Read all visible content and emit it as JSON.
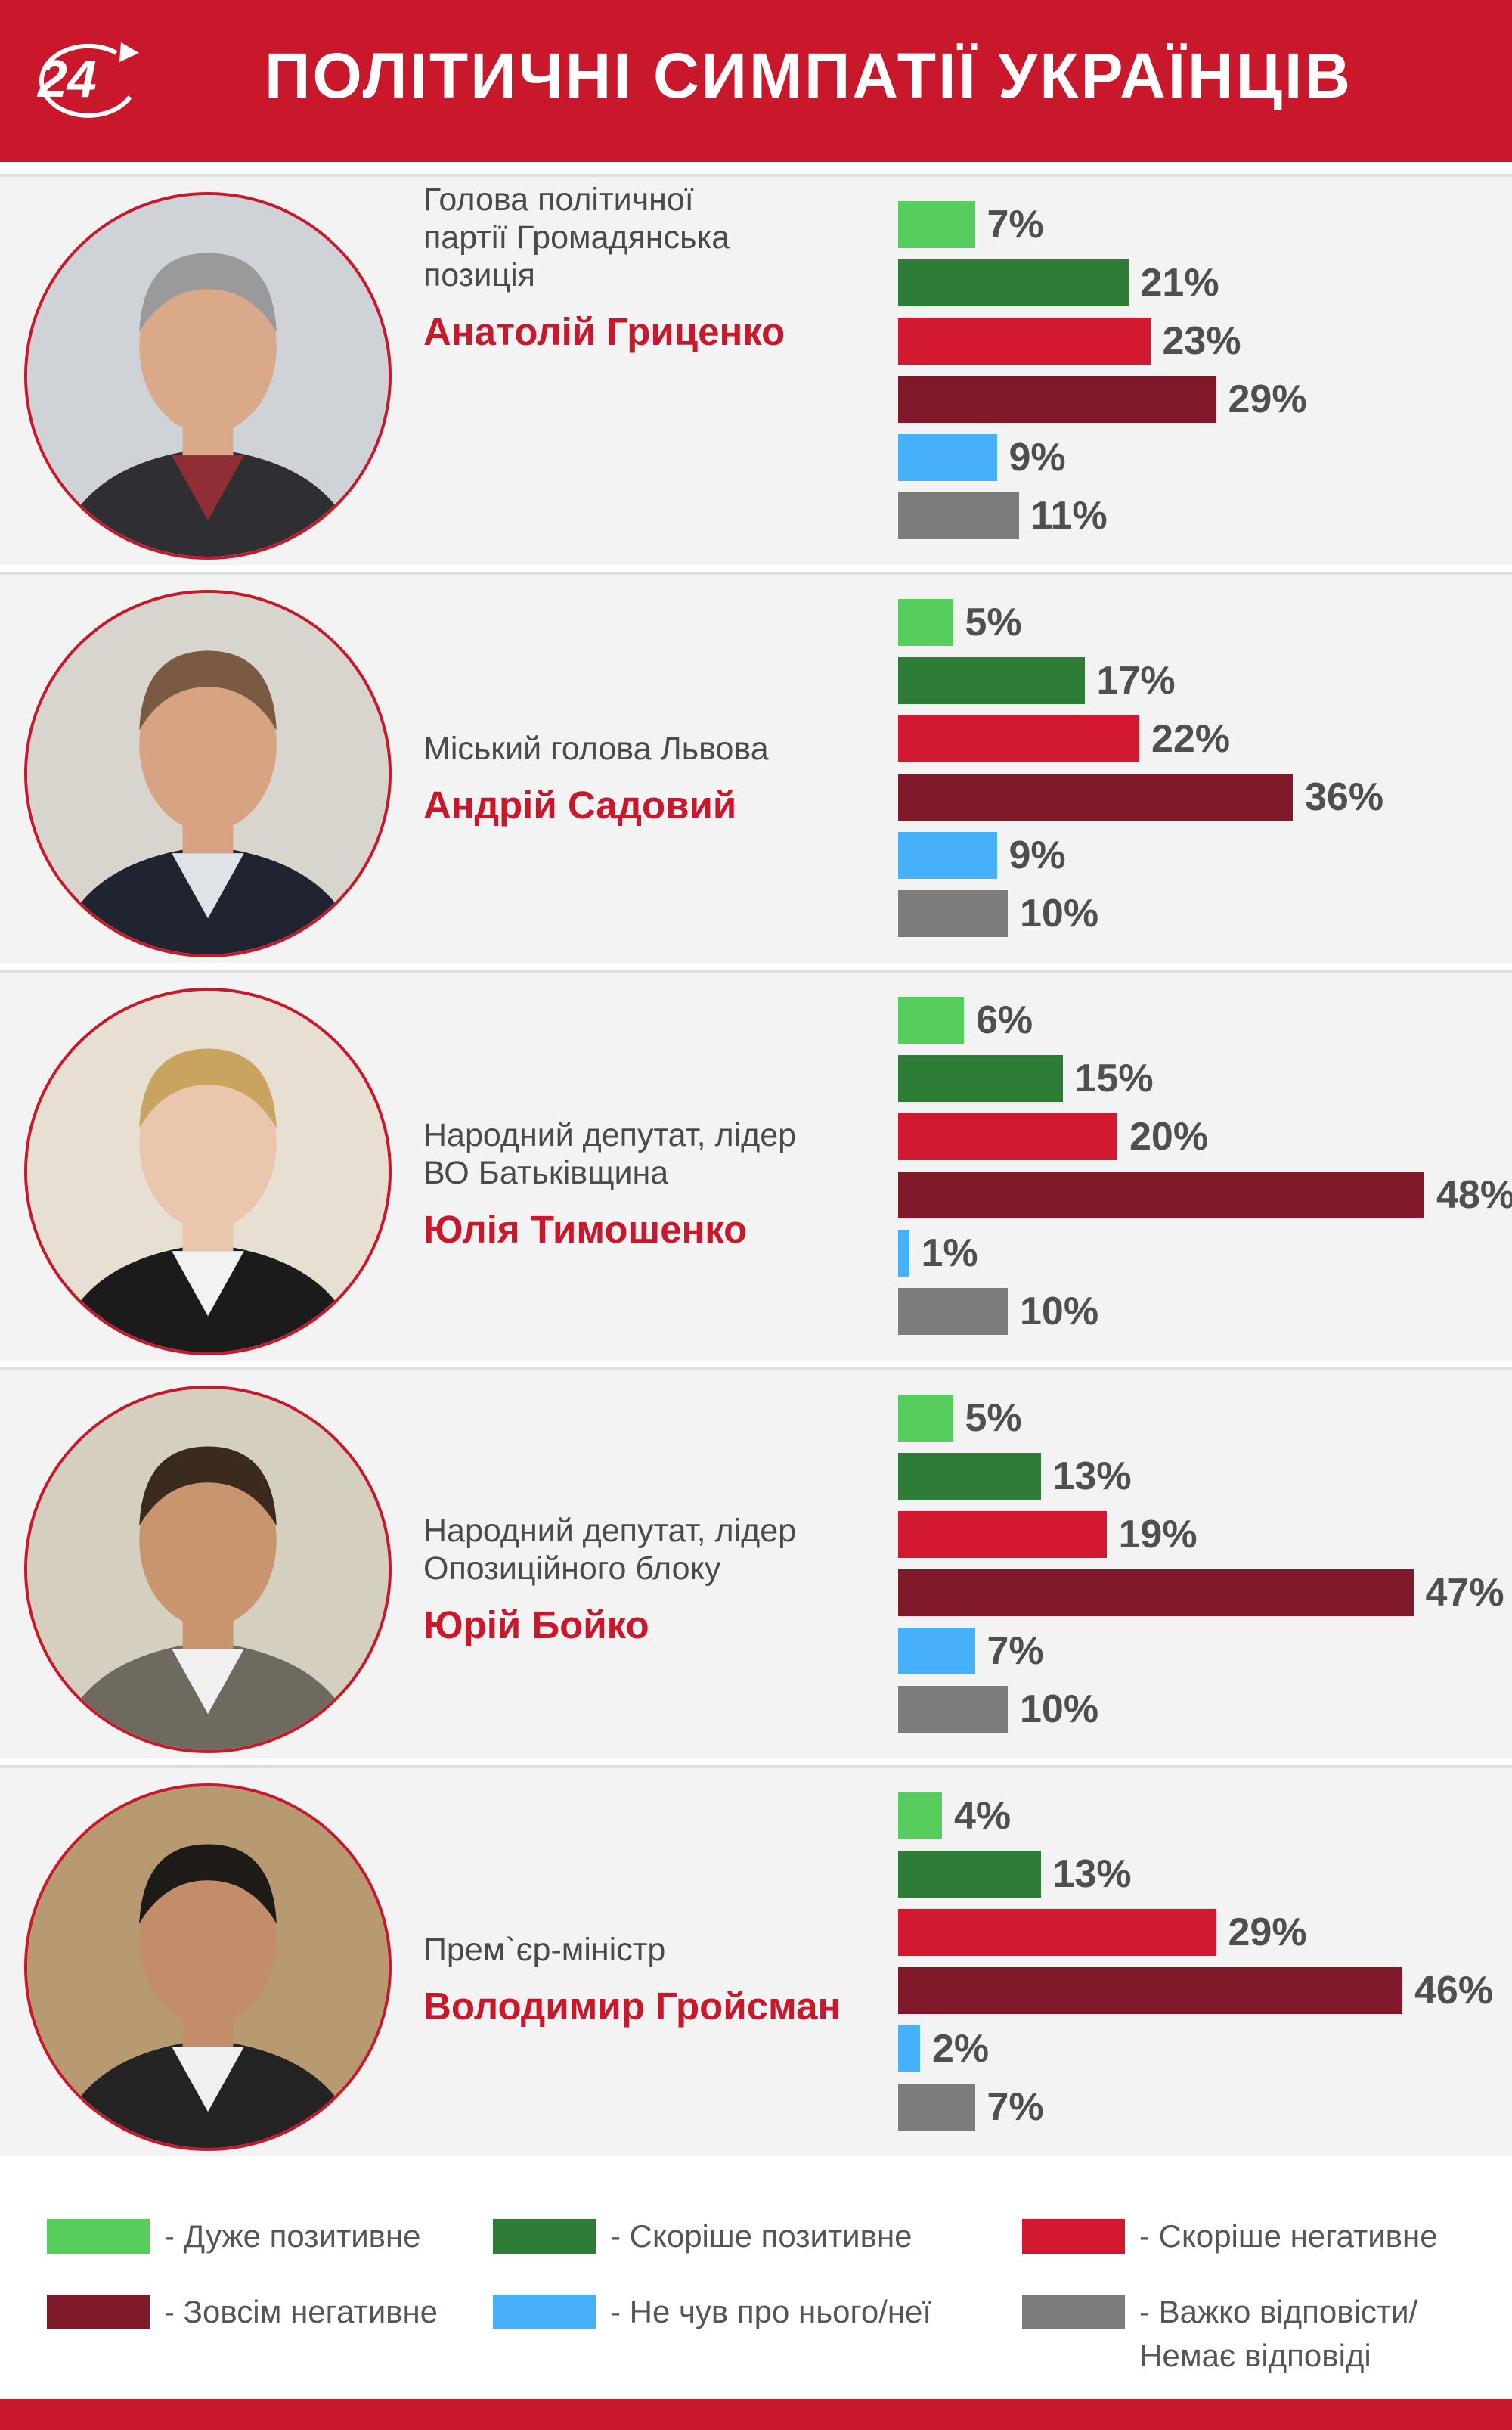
{
  "header": {
    "logo_text": "24",
    "title": "ПОЛІТИЧНІ СИМПАТІЇ УКРАЇНЦІВ"
  },
  "colors": {
    "brand_red": "#c9182b",
    "name_red": "#c9182b",
    "card_bg": "#f3f3f3"
  },
  "chart_data": {
    "type": "bar",
    "orientation": "horizontal",
    "xlim": [
      0,
      50
    ],
    "categories": [
      "Анатолій Гриценко",
      "Андрій Садовий",
      "Юлія Тимошенко",
      "Юрій Бойко",
      "Володимир Гройсман"
    ],
    "series": [
      {
        "name": "- Дуже позитивне",
        "color": "#56cd5c",
        "values": [
          7,
          5,
          6,
          5,
          4
        ]
      },
      {
        "name": "- Скоріше позитивне",
        "color": "#2e7d36",
        "values": [
          21,
          17,
          15,
          13,
          13
        ]
      },
      {
        "name": "- Скоріше негативне",
        "color": "#d2192f",
        "values": [
          23,
          22,
          20,
          19,
          29
        ]
      },
      {
        "name": "- Зовсім негативне",
        "color": "#801a2a",
        "values": [
          29,
          36,
          48,
          47,
          46
        ]
      },
      {
        "name": "- Не чув про нього/неї",
        "color": "#46b0f9",
        "values": [
          9,
          9,
          1,
          7,
          2
        ]
      },
      {
        "name": "- Важко відповісти/ Немає відповіді",
        "color": "#7c7c7c",
        "values": [
          11,
          10,
          10,
          10,
          7
        ]
      }
    ],
    "value_labels": [
      [
        "7%",
        "21%",
        "23%",
        "29%",
        "9%",
        "11%"
      ],
      [
        "5%",
        "17%",
        "22%",
        "36%",
        "9%",
        "10%"
      ],
      [
        "6%",
        "15%",
        "20%",
        "48%",
        "1%",
        "10%"
      ],
      [
        "5%",
        "13%",
        "19%",
        "47%",
        "7%",
        "10%"
      ],
      [
        "4%",
        "13%",
        "29%",
        "46%",
        "2%",
        "7%"
      ]
    ]
  },
  "politicians": [
    {
      "name": "Анатолій Гриценко",
      "role_lines": [
        "Голова політичної",
        "партії Громадянська",
        "позиція"
      ],
      "photo_icon": "portrait-photo-hrytsenko"
    },
    {
      "name": "Андрій Садовий",
      "role_lines": [
        "Міський голова Львова"
      ],
      "photo_icon": "portrait-photo-sadovyi"
    },
    {
      "name": "Юлія Тимошенко",
      "role_lines": [
        "Народний депутат, лідер",
        "ВО Батьківщина"
      ],
      "photo_icon": "portrait-photo-tymoshenko"
    },
    {
      "name": "Юрій Бойко",
      "role_lines": [
        "Народний депутат, лідер",
        "Опозиційного блоку"
      ],
      "photo_icon": "portrait-photo-boiko"
    },
    {
      "name": "Володимир Гройсман",
      "role_lines": [
        "Прем`єр-міністр"
      ],
      "photo_icon": "portrait-photo-groysman"
    }
  ],
  "legend": [
    {
      "lines": [
        "- Дуже позитивне"
      ]
    },
    {
      "lines": [
        "- Скоріше позитивне"
      ]
    },
    {
      "lines": [
        "- Скоріше негативне"
      ]
    },
    {
      "lines": [
        "- Зовсім негативне"
      ]
    },
    {
      "lines": [
        "- Не чув про нього/неї"
      ]
    },
    {
      "lines": [
        "- Важко відповісти/",
        "Немає відповіді"
      ]
    }
  ]
}
